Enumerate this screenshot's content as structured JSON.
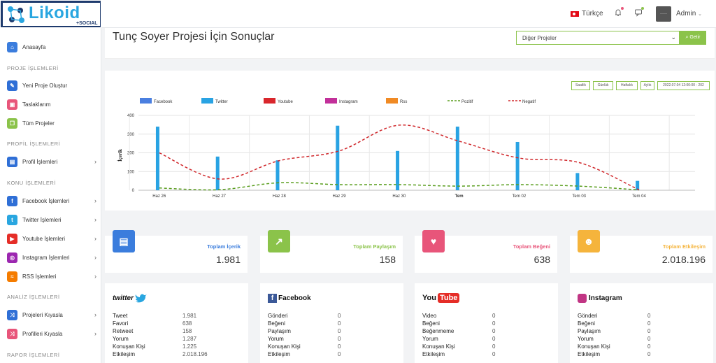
{
  "header": {
    "logo_text": "Likoid",
    "logo_sub": "+SOCIAL",
    "language": "Türkçe",
    "user": "Admin",
    "avatar_text": "——"
  },
  "sidebar": {
    "items": [
      {
        "label": "Anasayfa",
        "color": "#3b7ddd",
        "icon": "home-icon"
      },
      {
        "label": "Yeni Proje Oluştur",
        "color": "#2f6fd6",
        "icon": "edit-icon"
      },
      {
        "label": "Taslaklarım",
        "color": "#e8557a",
        "icon": "box-icon"
      },
      {
        "label": "Tüm Projeler",
        "color": "#8bc34a",
        "icon": "copy-icon"
      },
      {
        "label": "Profil İşlemleri",
        "color": "#2f6fd6",
        "icon": "id-card-icon"
      },
      {
        "label": "Facebook İşlemleri",
        "color": "#2f6fd6",
        "icon": "facebook-icon"
      },
      {
        "label": "Twitter İşlemleri",
        "color": "#29a6e0",
        "icon": "twitter-icon"
      },
      {
        "label": "Youtube İşlemleri",
        "color": "#e52d27",
        "icon": "youtube-icon"
      },
      {
        "label": "Instagram İşlemleri",
        "color": "#9c27b0",
        "icon": "instagram-icon"
      },
      {
        "label": "RSS İşlemleri",
        "color": "#f57c00",
        "icon": "rss-icon"
      },
      {
        "label": "Projeleri Kıyasla",
        "color": "#2f6fd6",
        "icon": "shuffle-icon"
      },
      {
        "label": "Profilleri Kıyasla",
        "color": "#e8557a",
        "icon": "shuffle-icon"
      }
    ],
    "headings": [
      "PROJE İŞLEMLERİ",
      "PROFİL İŞLEMLERİ",
      "KONU İŞLEMLERİ",
      "ANALİZ İŞLEMLERİ",
      "RAPOR İŞLEMLERİ"
    ]
  },
  "page": {
    "title": "Tunç Soyer Projesi İçin Sonuçlar",
    "select_value": "Diğer Projeler",
    "go_label": "Getir"
  },
  "range_buttons": [
    "Saatlik",
    "Günlük",
    "Haftalık",
    "Aylık",
    "2022.07.04 12:00:00 - 202"
  ],
  "chart_data": {
    "type": "bar",
    "ylabel": "İçerik",
    "ylim": [
      0,
      400
    ],
    "yticks": [
      0,
      100,
      200,
      300,
      400
    ],
    "categories": [
      "Haz 26",
      "Haz 27",
      "Haz 28",
      "Haz 29",
      "Haz 30",
      "Tem",
      "Tem 02",
      "Tem 03",
      "Tem 04"
    ],
    "legend": [
      {
        "name": "Facebook",
        "color": "#4a7fe0",
        "kind": "bar"
      },
      {
        "name": "Twitter",
        "color": "#29a3e3",
        "kind": "bar"
      },
      {
        "name": "Youtube",
        "color": "#d9262c",
        "kind": "bar"
      },
      {
        "name": "Instagram",
        "color": "#c2309a",
        "kind": "bar"
      },
      {
        "name": "Rss",
        "color": "#f08a24",
        "kind": "bar"
      },
      {
        "name": "Pozitif",
        "color": "#5a9e1f",
        "kind": "line"
      },
      {
        "name": "Negatif",
        "color": "#d0282c",
        "kind": "line"
      }
    ],
    "series": [
      {
        "name": "Facebook",
        "values": [
          0,
          0,
          0,
          0,
          0,
          0,
          0,
          0,
          0
        ]
      },
      {
        "name": "Twitter",
        "values": [
          340,
          180,
          160,
          345,
          210,
          340,
          258,
          92,
          50
        ]
      },
      {
        "name": "Youtube",
        "values": [
          0,
          0,
          0,
          0,
          0,
          0,
          0,
          0,
          0
        ]
      },
      {
        "name": "Instagram",
        "values": [
          0,
          0,
          0,
          0,
          0,
          0,
          0,
          0,
          0
        ]
      },
      {
        "name": "Rss",
        "values": [
          0,
          0,
          0,
          0,
          0,
          0,
          0,
          0,
          0
        ]
      },
      {
        "name": "Pozitif",
        "values": [
          12,
          3,
          40,
          30,
          30,
          22,
          30,
          22,
          2
        ]
      },
      {
        "name": "Negatif",
        "values": [
          200,
          60,
          158,
          210,
          348,
          262,
          172,
          148,
          2
        ]
      }
    ]
  },
  "stats": [
    {
      "label": "Toplam İçerik",
      "value": "1.981",
      "color": "#3b7ddd",
      "label_color": "#3b7ddd",
      "icon": "document-icon"
    },
    {
      "label": "Toplam Paylaşım",
      "value": "158",
      "color": "#8bc34a",
      "label_color": "#8bc34a",
      "icon": "share-icon"
    },
    {
      "label": "Toplam Beğeni",
      "value": "638",
      "color": "#e8557a",
      "label_color": "#e8557a",
      "icon": "heart-icon"
    },
    {
      "label": "Toplam Etkileşim",
      "value": "2.018.196",
      "color": "#f5b43c",
      "label_color": "#f5b43c",
      "icon": "users-icon"
    }
  ],
  "platforms": [
    {
      "name": "twitter",
      "rows": [
        [
          "Tweet",
          "1.981"
        ],
        [
          "Favori",
          "638"
        ],
        [
          "Retweet",
          "158"
        ],
        [
          "Yorum",
          "1.287"
        ],
        [
          "Konuşan Kişi",
          "1.225"
        ],
        [
          "Etkileşim",
          "2.018.196"
        ]
      ]
    },
    {
      "name": "Facebook",
      "rows": [
        [
          "Gönderi",
          "0"
        ],
        [
          "Beğeni",
          "0"
        ],
        [
          "Paylaşım",
          "0"
        ],
        [
          "Yorum",
          "0"
        ],
        [
          "Konuşan Kişi",
          "0"
        ],
        [
          "Etkileşim",
          "0"
        ]
      ]
    },
    {
      "name": "YouTube",
      "rows": [
        [
          "Video",
          "0"
        ],
        [
          "Beğeni",
          "0"
        ],
        [
          "Beğenmeme",
          "0"
        ],
        [
          "Yorum",
          "0"
        ],
        [
          "Konuşan Kişi",
          "0"
        ],
        [
          "Etkileşim",
          "0"
        ]
      ]
    },
    {
      "name": "Instagram",
      "rows": [
        [
          "Gönderi",
          "0"
        ],
        [
          "Beğeni",
          "0"
        ],
        [
          "Paylaşım",
          "0"
        ],
        [
          "Yorum",
          "0"
        ],
        [
          "Konuşan Kişi",
          "0"
        ],
        [
          "Etkileşim",
          "0"
        ]
      ]
    }
  ]
}
